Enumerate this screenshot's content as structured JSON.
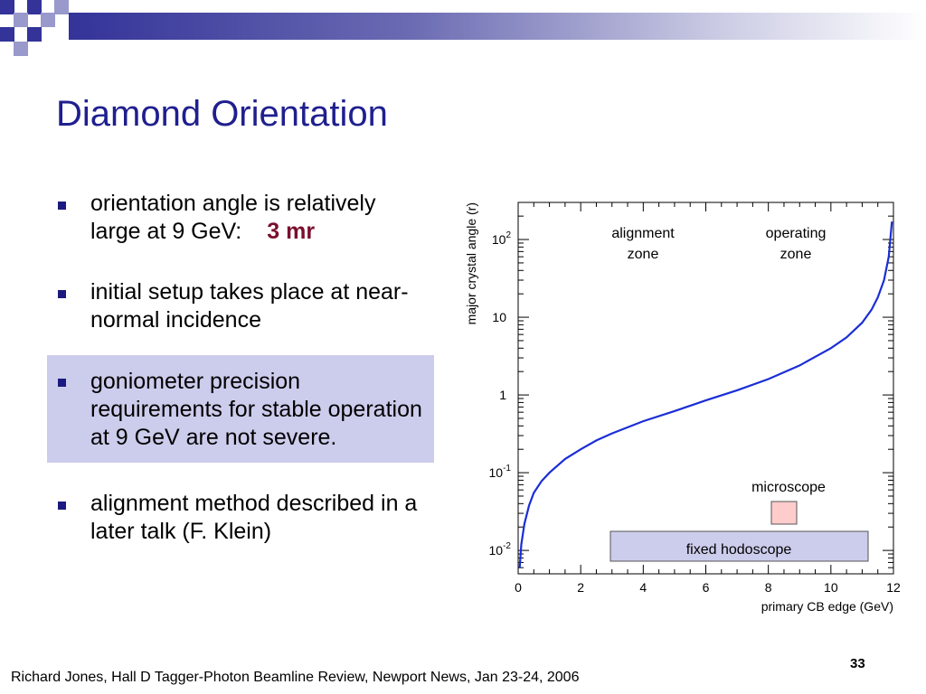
{
  "slide": {
    "title": "Diamond Orientation",
    "footer": "Richard Jones, Hall D Tagger-Photon Beamline Review, Newport News, Jan 23-24, 2006",
    "page_number": "33",
    "colors": {
      "title": "#1f1f8f",
      "highlight": "#ccccec",
      "accent": "#7a0f2d",
      "curve": "#1a2ed6"
    }
  },
  "bullets": [
    {
      "text": "orientation angle is relatively large at 9 GeV:",
      "accent": "3 mr"
    },
    {
      "text": "initial setup takes place at near-normal incidence"
    },
    {
      "text": "goniometer precision requirements for stable operation at 9 GeV are not severe.",
      "highlighted": true
    },
    {
      "text": "alignment method described in a later talk (F. Klein)"
    }
  ],
  "chart_data": {
    "type": "line",
    "title": "",
    "xlabel": "primary CB edge (GeV)",
    "ylabel": "major crystal angle (r)",
    "xlim": [
      0,
      12
    ],
    "ylim": [
      0.005,
      300
    ],
    "y_scale": "log",
    "x_ticks": [
      "0",
      "2",
      "4",
      "6",
      "8",
      "10",
      "12"
    ],
    "y_ticks": [
      {
        "value": 0.01,
        "base": "10",
        "exp": "-2"
      },
      {
        "value": 0.1,
        "base": "10",
        "exp": "-1"
      },
      {
        "value": 1,
        "base": "1",
        "exp": ""
      },
      {
        "value": 10,
        "base": "10",
        "exp": ""
      },
      {
        "value": 100,
        "base": "10",
        "exp": "2"
      }
    ],
    "series": [
      {
        "x": [
          0.05,
          0.1,
          0.2,
          0.35,
          0.5,
          0.75,
          1.0,
          1.5,
          2.0,
          2.5,
          3.0,
          4.0,
          5.0,
          6.0,
          7.0,
          8.0,
          9.0,
          10.0,
          10.5,
          11.0,
          11.3,
          11.5,
          11.7,
          11.85,
          11.95
        ],
        "y": [
          0.006,
          0.012,
          0.022,
          0.038,
          0.055,
          0.078,
          0.1,
          0.15,
          0.2,
          0.26,
          0.32,
          0.46,
          0.62,
          0.85,
          1.15,
          1.6,
          2.4,
          4.0,
          5.5,
          8.5,
          12.5,
          18,
          30,
          60,
          170
        ]
      }
    ],
    "annotations": [
      {
        "id": "alignment",
        "lines": [
          "alignment",
          "zone"
        ]
      },
      {
        "id": "operating",
        "lines": [
          "operating",
          "zone"
        ]
      },
      {
        "id": "microscope",
        "lines": [
          "microscope"
        ]
      },
      {
        "id": "hodoscope",
        "lines": [
          "fixed hodoscope"
        ]
      }
    ]
  }
}
